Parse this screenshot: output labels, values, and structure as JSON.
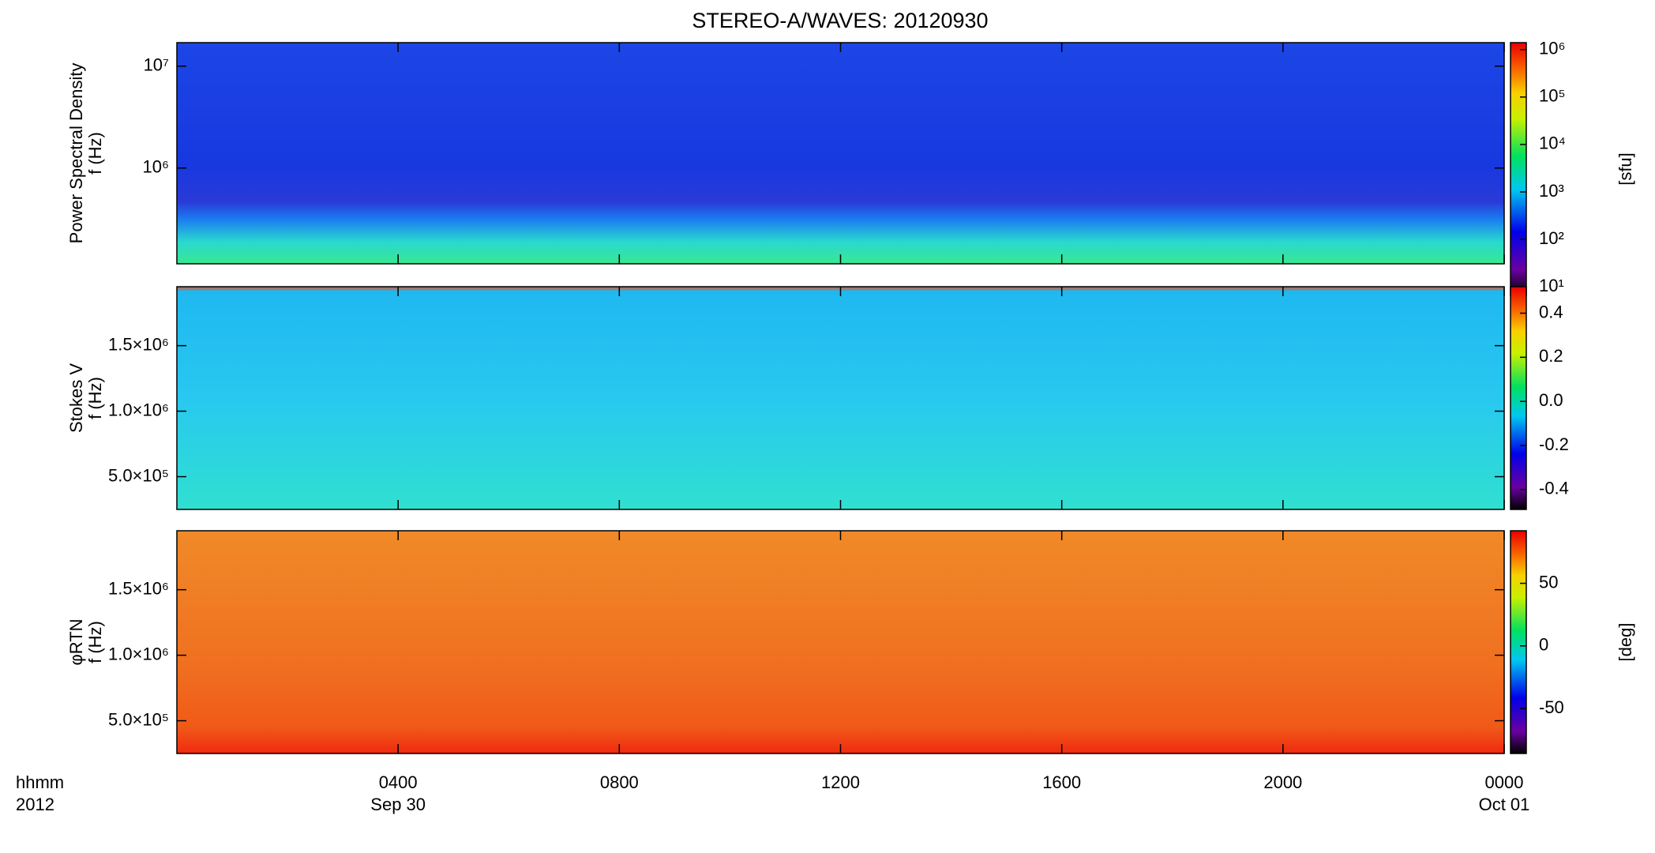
{
  "title": "STEREO-A/WAVES: 20120930",
  "chart_data": [
    {
      "type": "spectrogram",
      "ylabel": [
        "Power Spectral Density",
        "f (Hz)"
      ],
      "ylog": true,
      "ylim": [
        115000,
        17000000
      ],
      "yticks": [
        {
          "value": 1000000,
          "label": "10⁶"
        },
        {
          "value": 10000000,
          "label": "10⁷"
        }
      ],
      "colorbar": {
        "log": true,
        "clim": [
          6.6,
          1400000
        ],
        "label": "[sfu]",
        "ticks": [
          {
            "value": 10,
            "label": "10¹"
          },
          {
            "value": 100,
            "label": "10²"
          },
          {
            "value": 1000,
            "label": "10³"
          },
          {
            "value": 10000,
            "label": "10⁴"
          },
          {
            "value": 100000,
            "label": "10⁵"
          },
          {
            "value": 1000000,
            "label": "10⁶"
          }
        ]
      }
    },
    {
      "type": "spectrogram",
      "ylabel": [
        "Stokes V",
        "f (Hz)"
      ],
      "ylog": false,
      "ylim": [
        250000,
        1950000
      ],
      "yticks": [
        {
          "value": 500000,
          "label": "5.0×10⁵"
        },
        {
          "value": 1000000,
          "label": "1.0×10⁶"
        },
        {
          "value": 1500000,
          "label": "1.5×10⁶"
        }
      ],
      "colorbar": {
        "log": false,
        "clim": [
          -0.49,
          0.52
        ],
        "ticks": [
          {
            "value": -0.4,
            "label": "-0.4"
          },
          {
            "value": -0.2,
            "label": "-0.2"
          },
          {
            "value": 0.0,
            "label": "0.0"
          },
          {
            "value": 0.2,
            "label": "0.2"
          },
          {
            "value": 0.4,
            "label": "0.4"
          }
        ]
      }
    },
    {
      "type": "spectrogram",
      "ylabel": [
        "φRTN",
        "f (Hz)"
      ],
      "ylog": false,
      "ylim": [
        250000,
        1950000
      ],
      "yticks": [
        {
          "value": 500000,
          "label": "5.0×10⁵"
        },
        {
          "value": 1000000,
          "label": "1.0×10⁶"
        },
        {
          "value": 1500000,
          "label": "1.5×10⁶"
        }
      ],
      "colorbar": {
        "log": false,
        "clim": [
          -86,
          92
        ],
        "label": "[deg]",
        "ticks": [
          -50,
          0,
          50
        ]
      },
      "xlim": [
        0,
        24
      ],
      "xticks": [
        {
          "value": 4,
          "label": "0400"
        },
        {
          "value": 8,
          "label": "0800"
        },
        {
          "value": 12,
          "label": "1200"
        },
        {
          "value": 16,
          "label": "1600"
        },
        {
          "value": 20,
          "label": "2000"
        },
        {
          "value": 24,
          "label": "0000"
        }
      ],
      "date_labels": [
        {
          "value": 4,
          "label": "Sep 30"
        },
        {
          "value": 24,
          "label": "Oct 01"
        }
      ],
      "xlabel": [
        "hhmm",
        "2012"
      ]
    }
  ]
}
